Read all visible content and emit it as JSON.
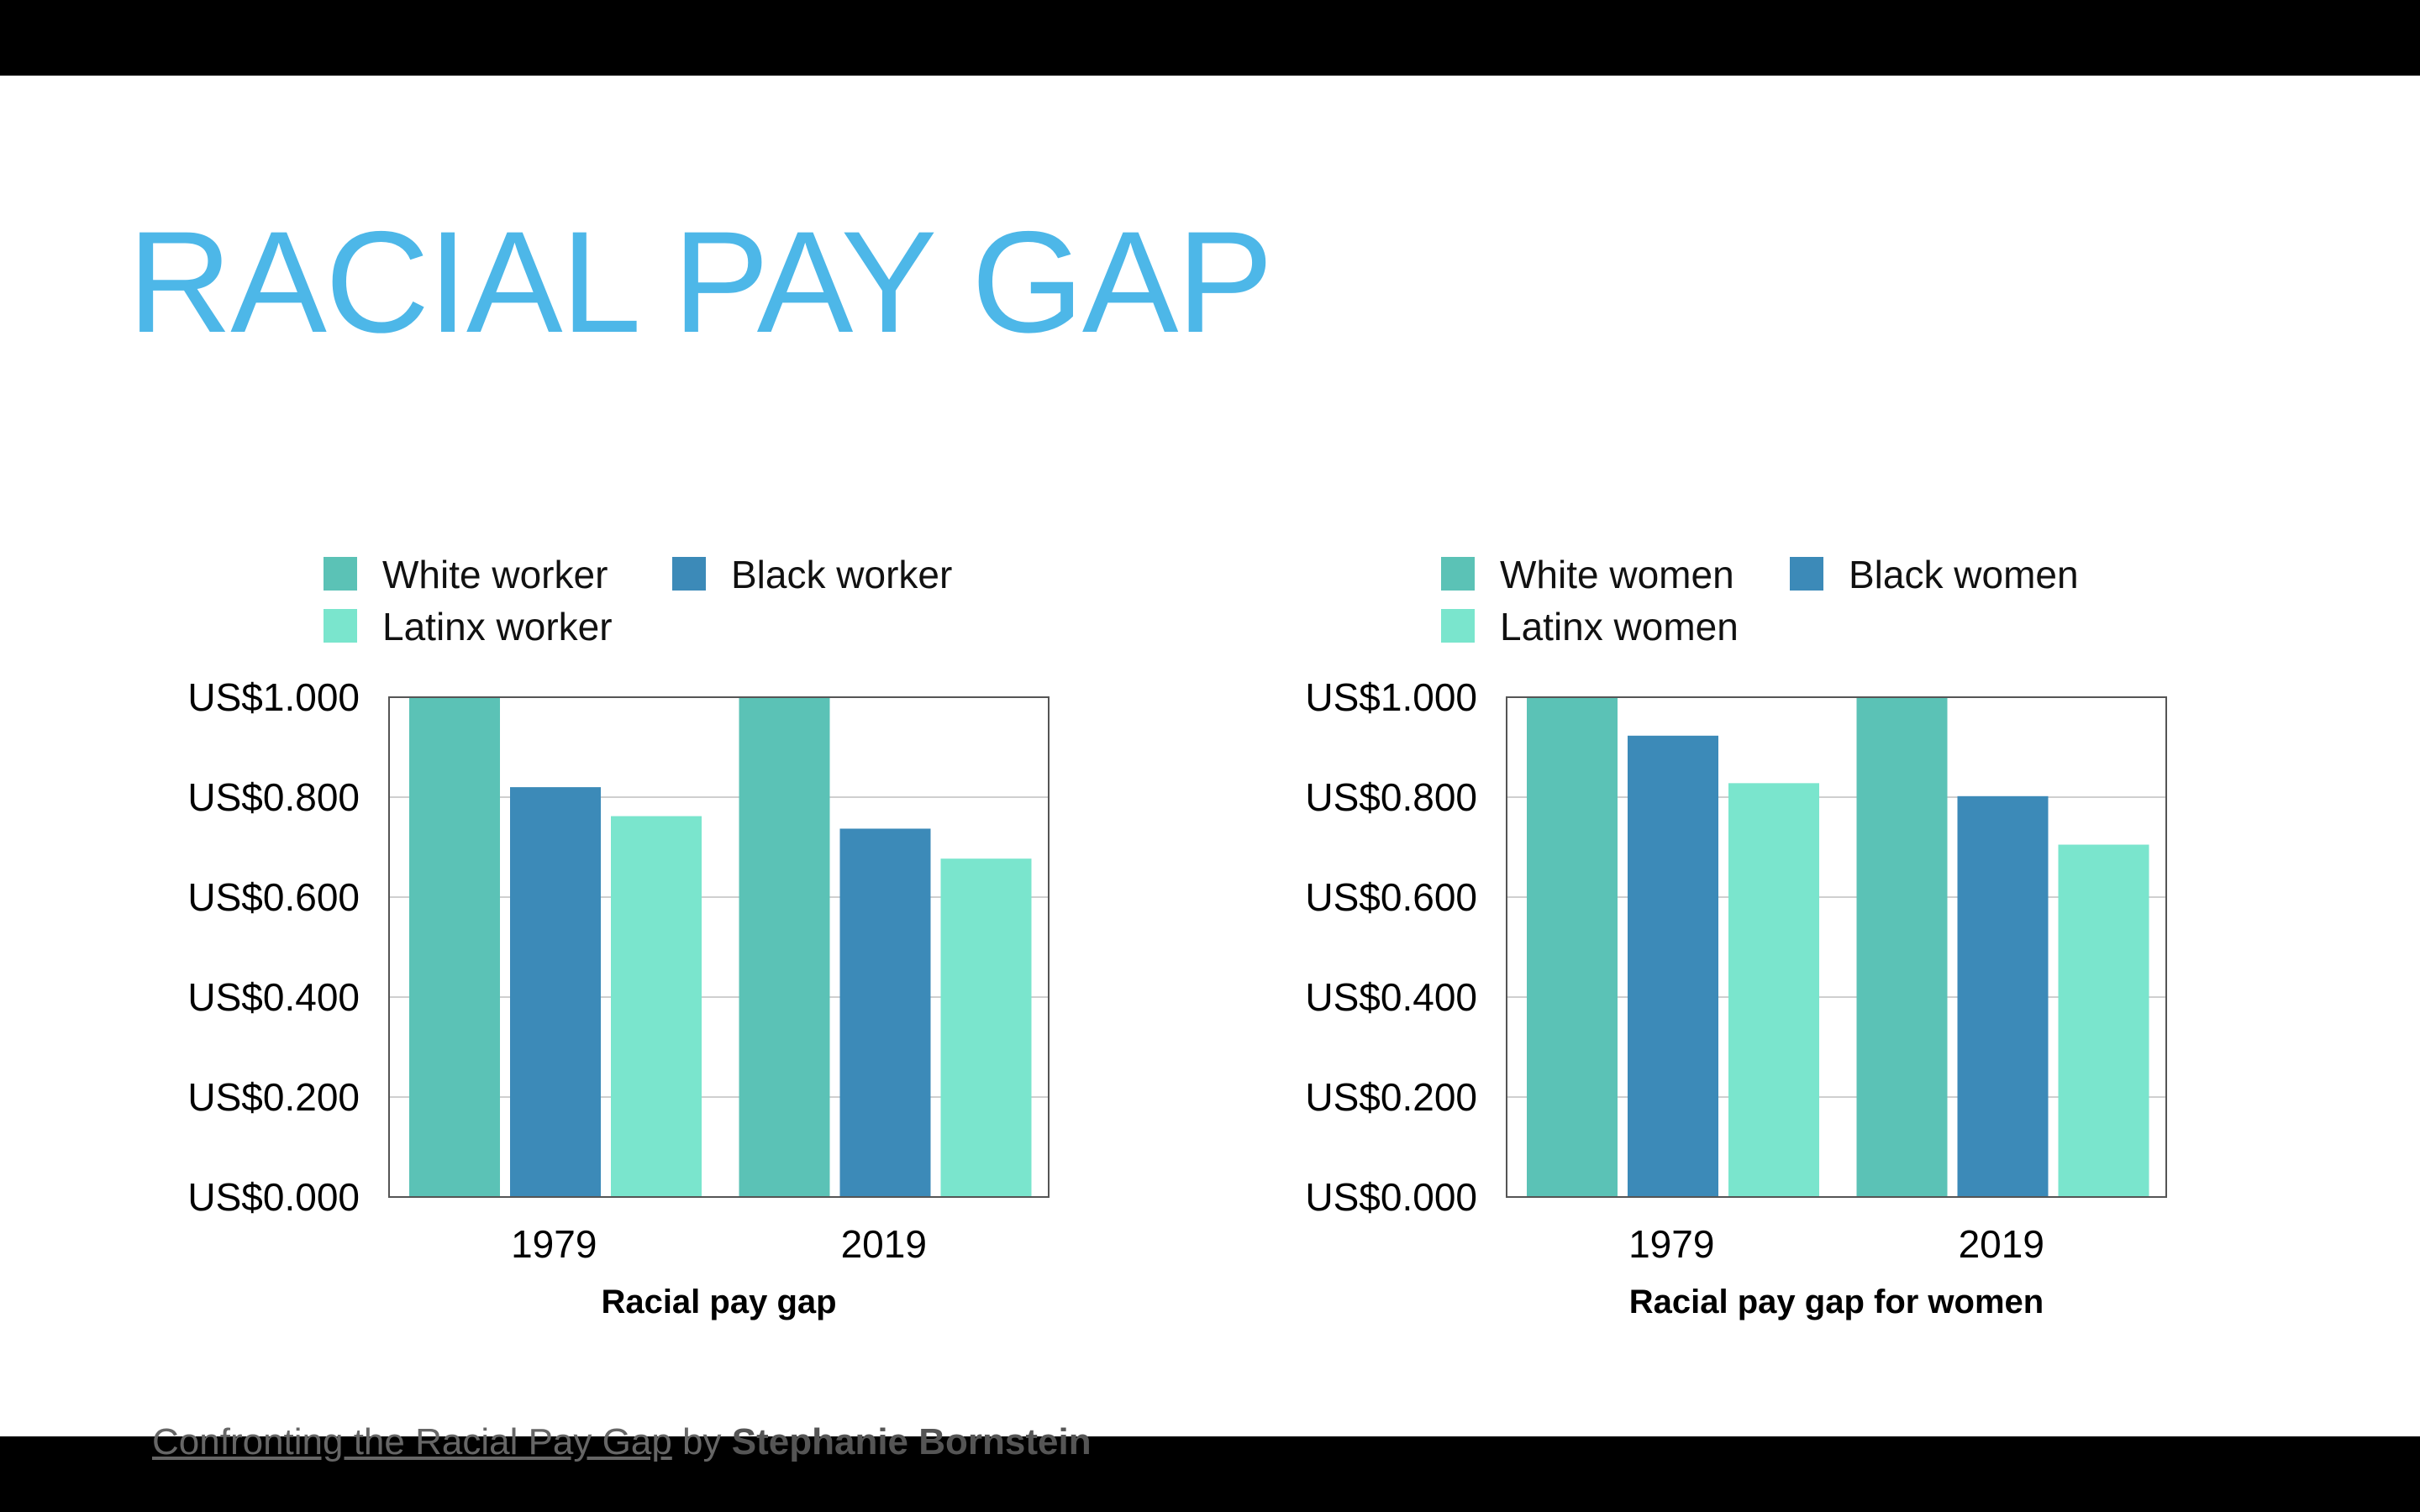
{
  "slide_title": "RACIAL PAY GAP",
  "colors": {
    "title": "#4db7e8",
    "series": [
      "#5bc2b6",
      "#3c8ab8",
      "#7ae5cd"
    ]
  },
  "footer": {
    "link_text": "Confronting the Racial Pay Gap",
    "by": "by",
    "author": "Stephanie Bornstein"
  },
  "chart_data": [
    {
      "type": "bar",
      "categories": [
        "1979",
        "2019"
      ],
      "series": [
        {
          "name": "White worker",
          "values": [
            1.0,
            1.0
          ]
        },
        {
          "name": "Black worker",
          "values": [
            0.82,
            0.737
          ]
        },
        {
          "name": "Latinx worker",
          "values": [
            0.762,
            0.677
          ]
        }
      ],
      "xlabel": "Racial pay gap",
      "ylabel": "",
      "ylim": [
        0,
        1.0
      ],
      "yticks": [
        "US$0.000",
        "US$0.200",
        "US$0.400",
        "US$0.600",
        "US$0.800",
        "US$1.000"
      ],
      "grid": true,
      "legend": "top"
    },
    {
      "type": "bar",
      "categories": [
        "1979",
        "2019"
      ],
      "series": [
        {
          "name": "White women",
          "values": [
            1.0,
            1.0
          ]
        },
        {
          "name": "Black women",
          "values": [
            0.923,
            0.802
          ]
        },
        {
          "name": "Latinx women",
          "values": [
            0.828,
            0.705
          ]
        }
      ],
      "xlabel": "Racial pay gap for women",
      "ylabel": "",
      "ylim": [
        0,
        1.0
      ],
      "yticks": [
        "US$0.000",
        "US$0.200",
        "US$0.400",
        "US$0.600",
        "US$0.800",
        "US$1.000"
      ],
      "grid": true,
      "legend": "top"
    }
  ]
}
